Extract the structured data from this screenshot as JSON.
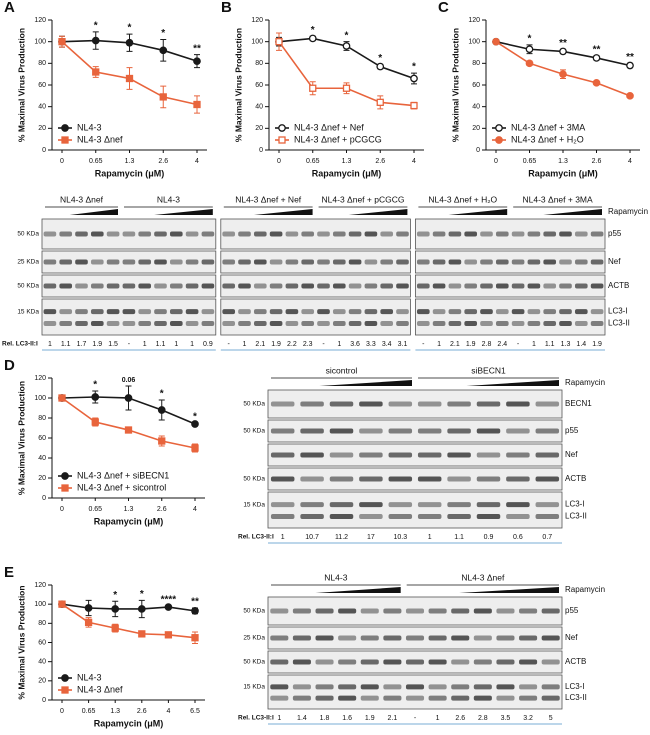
{
  "chart_data": [
    {
      "type": "line",
      "panel": "A",
      "ylabel": "% Maximal Virus Production",
      "xlabel": "Rapamycin (μM)",
      "categories": [
        "0",
        "0.65",
        "1.3",
        "2.6",
        "4"
      ],
      "ylim": [
        0,
        120
      ],
      "yticks": [
        0,
        20,
        40,
        60,
        80,
        100,
        120
      ],
      "legend": "lower left",
      "series": [
        {
          "name": "NL4-3",
          "color": "#1a1a1a",
          "marker": "circle",
          "values": [
            100,
            101,
            99,
            92,
            82
          ],
          "errors": [
            5,
            8,
            8,
            10,
            6
          ]
        },
        {
          "name": "NL4-3 Δnef",
          "color": "#e8643c",
          "marker": "square",
          "values": [
            100,
            72,
            66,
            49,
            42
          ],
          "errors": [
            5,
            5,
            10,
            10,
            8
          ]
        }
      ],
      "annotations": [
        null,
        "*",
        "*",
        "*",
        "**"
      ]
    },
    {
      "type": "line",
      "panel": "B",
      "ylabel": "% Maximal Virus Production",
      "xlabel": "Rapamycin (μM)",
      "categories": [
        "0",
        "0.65",
        "1.3",
        "2.6",
        "4"
      ],
      "ylim": [
        0,
        120
      ],
      "yticks": [
        0,
        20,
        40,
        60,
        80,
        100,
        120
      ],
      "legend": "lower left",
      "series": [
        {
          "name": "NL4-3 Δnef + Nef",
          "color": "#1a1a1a",
          "marker": "open-circle",
          "values": [
            100,
            103,
            96,
            77,
            66
          ],
          "errors": [
            4,
            2,
            4,
            2,
            5
          ]
        },
        {
          "name": "NL4-3 Δnef + pCGCG",
          "color": "#e8643c",
          "marker": "open-square",
          "values": [
            100,
            57,
            57,
            44,
            41
          ],
          "errors": [
            8,
            6,
            5,
            6,
            3
          ]
        }
      ],
      "annotations": [
        null,
        "*",
        "*",
        "*",
        "*"
      ]
    },
    {
      "type": "line",
      "panel": "C",
      "ylabel": "% Maximal Virus Production",
      "xlabel": "Rapamycin (μM)",
      "categories": [
        "0",
        "0.65",
        "1.3",
        "2.6",
        "4"
      ],
      "ylim": [
        0,
        120
      ],
      "yticks": [
        0,
        20,
        40,
        60,
        80,
        100,
        120
      ],
      "legend": "lower left",
      "series": [
        {
          "name": "NL4-3 Δnef + 3MA",
          "color": "#1a1a1a",
          "marker": "open-circle",
          "values": [
            100,
            93,
            91,
            85,
            78
          ],
          "errors": [
            1,
            4,
            2,
            2,
            2
          ]
        },
        {
          "name": "NL4-3 Δnef + H₂O",
          "color": "#e8643c",
          "marker": "circle",
          "values": [
            100,
            80,
            70,
            62,
            50
          ],
          "errors": [
            1,
            2,
            4,
            1,
            1
          ]
        }
      ],
      "annotations": [
        null,
        "*",
        "**",
        "**",
        "**"
      ]
    },
    {
      "type": "line",
      "panel": "D",
      "ylabel": "% Maximal Virus Production",
      "xlabel": "Rapamycin (μM)",
      "categories": [
        "0",
        "0.65",
        "1.3",
        "2.6",
        "4"
      ],
      "ylim": [
        0,
        120
      ],
      "yticks": [
        0,
        20,
        40,
        60,
        80,
        100,
        120
      ],
      "legend": "lower left",
      "series": [
        {
          "name": "NL4-3 Δnef + siBECN1",
          "color": "#1a1a1a",
          "marker": "circle",
          "values": [
            100,
            101,
            100,
            88,
            74
          ],
          "errors": [
            1,
            6,
            12,
            10,
            1
          ]
        },
        {
          "name": "NL4-3 Δnef + sicontrol",
          "color": "#e8643c",
          "marker": "square",
          "values": [
            100,
            76,
            68,
            57,
            50
          ],
          "errors": [
            1,
            4,
            2,
            5,
            4
          ]
        }
      ],
      "annotations": [
        null,
        "*",
        "0.06",
        "*",
        "*"
      ]
    },
    {
      "type": "line",
      "panel": "E",
      "ylabel": "% Maximal Virus Production",
      "xlabel": "Rapamycin (μM)",
      "categories": [
        "0",
        "0.65",
        "1.3",
        "2.6",
        "4",
        "6.5"
      ],
      "ylim": [
        0,
        120
      ],
      "yticks": [
        0,
        20,
        40,
        60,
        80,
        100,
        120
      ],
      "legend": "lower left",
      "series": [
        {
          "name": "NL4-3",
          "color": "#1a1a1a",
          "marker": "circle",
          "values": [
            100,
            96,
            95,
            95,
            97,
            93
          ],
          "errors": [
            1,
            8,
            8,
            9,
            1,
            3
          ]
        },
        {
          "name": "NL4-3 Δnef",
          "color": "#e8643c",
          "marker": "square",
          "values": [
            100,
            81,
            75,
            69,
            68,
            65
          ],
          "errors": [
            1,
            5,
            4,
            1,
            2,
            6
          ]
        }
      ],
      "annotations": [
        null,
        null,
        "*",
        "*",
        "****",
        "**"
      ]
    }
  ],
  "blots": [
    {
      "treatment": "Rapamycin",
      "rel_label": "Rel. LC3-II:I",
      "rows": [
        {
          "kda": "50 KDa",
          "labels": [
            "p55"
          ]
        },
        {
          "kda": "25 KDa",
          "labels": [
            "Nef"
          ]
        },
        {
          "kda": "50 KDa",
          "labels": [
            "ACTB"
          ]
        },
        {
          "kda": "15 KDa",
          "labels": [
            "LC3-I",
            "LC3-II"
          ]
        }
      ],
      "panels": [
        [
          {
            "name": "NL4-3 Δnef",
            "rel": [
              "1",
              "1.1",
              "1.7",
              "1.9",
              "1.5"
            ]
          },
          {
            "name": "NL4-3",
            "rel": [
              "-",
              "1",
              "1.1",
              "1",
              "1",
              "0.9"
            ]
          }
        ],
        [
          {
            "name": "NL4-3 Δnef + Nef",
            "rel": [
              "-",
              "1",
              "2.1",
              "1.9",
              "2.2",
              "2.3"
            ]
          },
          {
            "name": "NL4-3 Δnef + pCGCG",
            "rel": [
              "-",
              "1",
              "3.6",
              "3.3",
              "3.4",
              "3.1"
            ]
          }
        ],
        [
          {
            "name": "NL4-3 Δnef + H₂O",
            "rel": [
              "-",
              "1",
              "2.1",
              "1.9",
              "2.8",
              "2.4"
            ]
          },
          {
            "name": "NL4-3 Δnef + 3MA",
            "rel": [
              "-",
              "1",
              "1.1",
              "1.3",
              "1.4",
              "1.9"
            ]
          }
        ]
      ]
    },
    {
      "treatment": "Rapamycin",
      "rel_label": "Rel. LC3-II:I",
      "rows": [
        {
          "kda": "50 KDa",
          "labels": [
            "BECN1"
          ]
        },
        {
          "kda": "50 KDa",
          "labels": [
            "p55"
          ]
        },
        {
          "kda": null,
          "labels": [
            "Nef"
          ]
        },
        {
          "kda": "50 KDa",
          "labels": [
            "ACTB"
          ]
        },
        {
          "kda": "15 KDa",
          "labels": [
            "LC3-I",
            "LC3-II"
          ]
        }
      ],
      "panels": [
        [
          {
            "name": "sicontrol",
            "rel": [
              "1",
              "10.7",
              "11.2",
              "17",
              "10.3"
            ]
          },
          {
            "name": "siBECN1",
            "rel": [
              "1",
              "1.1",
              "0.9",
              "0.6",
              "0.7"
            ]
          }
        ]
      ]
    },
    {
      "treatment": "Rapamycin",
      "rel_label": "Rel. LC3-II:I",
      "rows": [
        {
          "kda": "50 KDa",
          "labels": [
            "p55"
          ]
        },
        {
          "kda": "25 KDa",
          "labels": [
            "Nef"
          ]
        },
        {
          "kda": "50 KDa",
          "labels": [
            "ACTB"
          ]
        },
        {
          "kda": "15 KDa",
          "labels": [
            "LC3-I",
            "LC3-II"
          ]
        }
      ],
      "panels": [
        [
          {
            "name": "NL4-3",
            "rel": [
              "1",
              "1.4",
              "1.8",
              "1.6",
              "1.9",
              "2.1"
            ]
          },
          {
            "name": "NL4-3 Δnef",
            "rel": [
              "-",
              "1",
              "2.6",
              "2.8",
              "3.5",
              "3.2",
              "5"
            ]
          }
        ]
      ]
    }
  ]
}
